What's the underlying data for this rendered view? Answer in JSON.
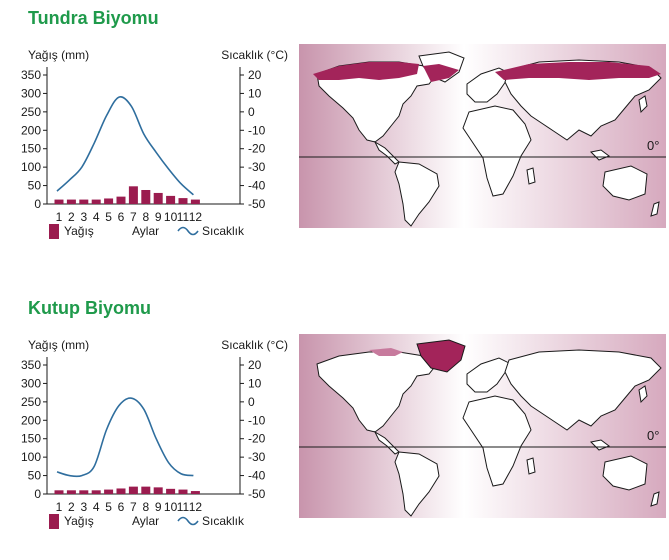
{
  "colors": {
    "title": "#1f9a4b",
    "bar": "#9b1c4f",
    "line": "#2f6e9e",
    "region": "#a3245a",
    "map_bg_edge": "#c894ac",
    "map_bg_center": "#ffffff",
    "land": "#ffffff",
    "coast": "#1a1a1a"
  },
  "sections": [
    {
      "title": "Tundra Biyomu",
      "map": {
        "equator_label": "0°",
        "region_icon": "tundra-belt-region"
      }
    },
    {
      "title": "Kutup Biyomu",
      "map": {
        "equator_label": "0°",
        "region_icon": "greenland-ice-region"
      }
    }
  ],
  "chart_data": [
    {
      "type": "bar+line",
      "xlabel": "Aylar",
      "ylabel_left": "Yağış (mm)",
      "ylabel_right": "Sıcaklık (°C)",
      "categories": [
        "1",
        "2",
        "3",
        "4",
        "5",
        "6",
        "7",
        "8",
        "9",
        "10",
        "11",
        "12"
      ],
      "left_ticks": [
        "350",
        "300",
        "250",
        "200",
        "150",
        "100",
        "50",
        "0"
      ],
      "right_ticks": [
        "20",
        "10",
        "0",
        "-10",
        "-20",
        "-30",
        "-40",
        "-50"
      ],
      "ylim_left": [
        0,
        350
      ],
      "ylim_right": [
        -50,
        20
      ],
      "legend": {
        "precip": "Yağış",
        "temp": "Sıcaklık",
        "xlabel": "Aylar"
      },
      "series": [
        {
          "name": "Yağış",
          "kind": "bar",
          "values": [
            12,
            12,
            12,
            12,
            15,
            20,
            48,
            38,
            30,
            22,
            16,
            12
          ]
        },
        {
          "name": "Sıcaklık",
          "kind": "line",
          "values": [
            -43,
            -37,
            -30,
            -17,
            -2,
            8,
            3,
            -12,
            -22,
            -31,
            -39,
            -45
          ]
        }
      ]
    },
    {
      "type": "bar+line",
      "xlabel": "Aylar",
      "ylabel_left": "Yağış (mm)",
      "ylabel_right": "Sıcaklık (°C)",
      "categories": [
        "1",
        "2",
        "3",
        "4",
        "5",
        "6",
        "7",
        "8",
        "9",
        "10",
        "11",
        "12"
      ],
      "left_ticks": [
        "350",
        "300",
        "250",
        "200",
        "150",
        "100",
        "50",
        "0"
      ],
      "right_ticks": [
        "20",
        "10",
        "0",
        "-10",
        "-20",
        "-30",
        "-40",
        "-50"
      ],
      "ylim_left": [
        0,
        350
      ],
      "ylim_right": [
        -50,
        20
      ],
      "legend": {
        "precip": "Yağış",
        "temp": "Sıcaklık",
        "xlabel": "Aylar"
      },
      "series": [
        {
          "name": "Yağış",
          "kind": "bar",
          "values": [
            10,
            10,
            10,
            10,
            12,
            15,
            20,
            20,
            18,
            14,
            12,
            8
          ]
        },
        {
          "name": "Sıcaklık",
          "kind": "line",
          "values": [
            -38,
            -40,
            -40,
            -35,
            -15,
            -2,
            2,
            -4,
            -20,
            -33,
            -39,
            -40
          ]
        }
      ]
    }
  ]
}
